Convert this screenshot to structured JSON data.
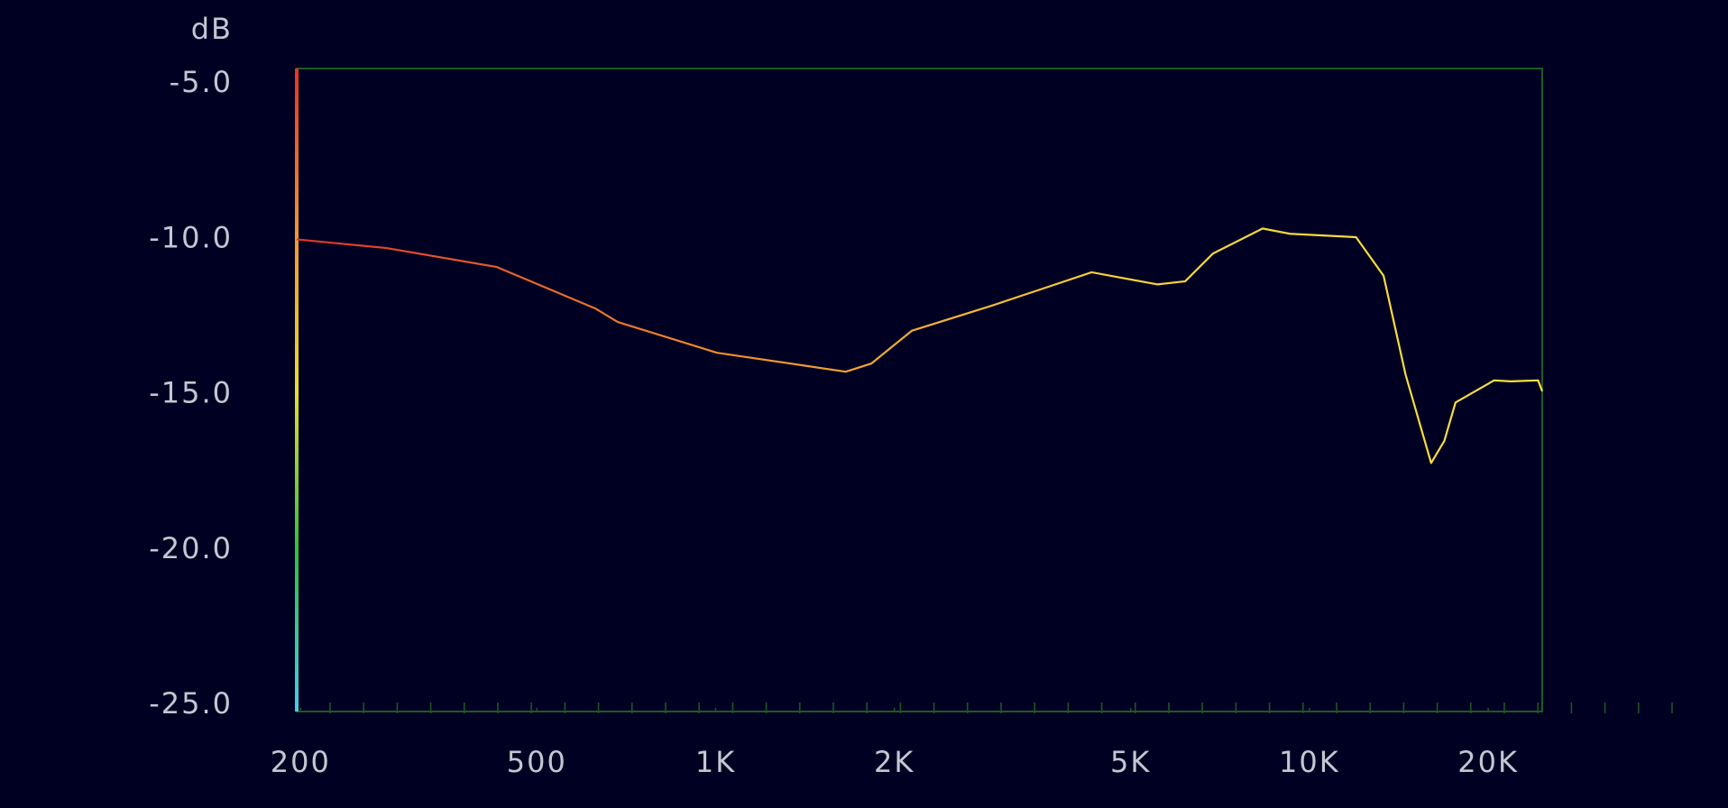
{
  "chart_data": {
    "type": "line",
    "y_axis_label": "dB",
    "x": [
      197,
      279,
      428,
      628,
      684,
      1005,
      1656,
      1828,
      2140,
      2922,
      4297,
      5546,
      6176,
      6875,
      8337,
      9274,
      11980,
      13330,
      14520,
      16030,
      16870,
      17620,
      20460,
      21820,
      24270,
      24660
    ],
    "series": [
      {
        "values": [
          -10.0,
          -10.28,
          -10.89,
          -12.23,
          -12.66,
          -13.65,
          -14.26,
          -14.0,
          -12.94,
          -12.13,
          -11.06,
          -11.45,
          -11.35,
          -10.46,
          -9.65,
          -9.82,
          -9.93,
          -11.17,
          -14.36,
          -17.2,
          -16.49,
          -15.25,
          -14.54,
          -14.57,
          -14.54,
          -14.89
        ],
        "colors": [
          "#e0342c",
          "#f08a2c",
          "#f5d33a",
          "#f8e040"
        ]
      }
    ],
    "x_log_scale": true,
    "xlim": [
      197,
      24660
    ],
    "xticks": [
      {
        "value": 200,
        "label": "200"
      },
      {
        "value": 500,
        "label": "500"
      },
      {
        "value": 1000,
        "label": "1K"
      },
      {
        "value": 2000,
        "label": "2K"
      },
      {
        "value": 5000,
        "label": "5K"
      },
      {
        "value": 10000,
        "label": "10K"
      },
      {
        "value": 20000,
        "label": "20K"
      }
    ],
    "ylim": [
      -4.5,
      -25.2
    ],
    "yticks": [
      {
        "value": -5,
        "label": "-5.0"
      },
      {
        "value": -10,
        "label": "-10.0"
      },
      {
        "value": -15,
        "label": "-15.0"
      },
      {
        "value": -20,
        "label": "-20.0"
      },
      {
        "value": -25,
        "label": "-25.0"
      }
    ],
    "axis_bar_colors": [
      "#e63224",
      "#f0962a",
      "#eadc2c",
      "#32c03a",
      "#46cce8"
    ],
    "frame_color": "#1e5a24",
    "background": "#000022"
  }
}
